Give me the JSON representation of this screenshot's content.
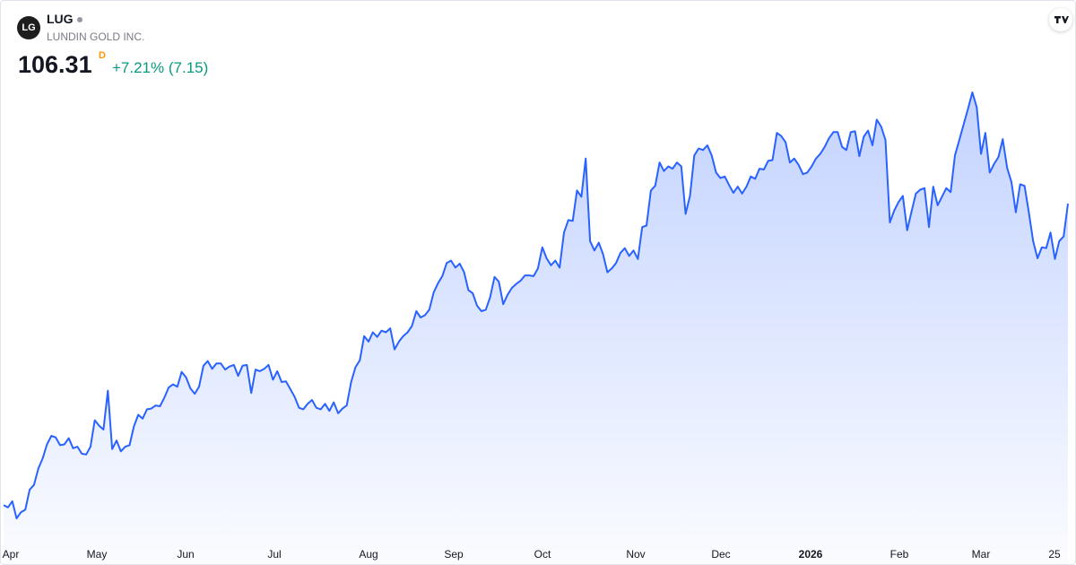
{
  "header": {
    "logo": "LG",
    "symbol": "LUG",
    "name": "LUNDIN GOLD INC.",
    "price": 106.31,
    "interval": "D",
    "change": "+7.21% (7.15)"
  },
  "chart_data": {
    "type": "area",
    "color": "#2962ff",
    "x_labels": [
      "Apr",
      "May",
      "Jun",
      "Jul",
      "Aug",
      "Sep",
      "Oct",
      "Nov",
      "Dec",
      "2026",
      "Feb",
      "Mar",
      "25"
    ],
    "values": [
      67.6,
      67.3,
      68.1,
      65.9,
      66.7,
      67.0,
      69.6,
      70.2,
      72.3,
      73.6,
      75.4,
      76.5,
      76.3,
      75.3,
      75.4,
      76.2,
      74.9,
      75.1,
      74.2,
      74.1,
      75.1,
      78.5,
      77.8,
      77.3,
      82.3,
      74.8,
      75.9,
      74.5,
      75.1,
      75.3,
      77.7,
      79.2,
      78.7,
      79.9,
      80.0,
      80.4,
      80.3,
      81.4,
      82.7,
      83.1,
      82.8,
      84.7,
      84.0,
      82.6,
      81.9,
      82.8,
      85.5,
      86.1,
      85.1,
      85.8,
      85.8,
      85.0,
      85.4,
      85.6,
      84.2,
      85.5,
      85.6,
      82.0,
      85.0,
      84.8,
      85.1,
      85.6,
      83.7,
      84.8,
      83.4,
      83.5,
      82.5,
      81.5,
      80.1,
      79.9,
      80.6,
      81.1,
      80.1,
      79.9,
      80.6,
      79.7,
      80.8,
      79.4,
      80.0,
      80.4,
      83.4,
      85.3,
      86.2,
      89.3,
      88.6,
      89.8,
      89.2,
      90.0,
      89.8,
      90.3,
      87.6,
      88.6,
      89.3,
      89.8,
      90.6,
      92.5,
      91.7,
      92.0,
      92.7,
      94.9,
      96.1,
      97.0,
      98.7,
      99.0,
      98.1,
      98.6,
      97.5,
      95.2,
      94.8,
      93.2,
      92.5,
      92.7,
      94.3,
      96.9,
      96.3,
      93.4,
      94.6,
      95.5,
      96.0,
      96.4,
      97.1,
      97.1,
      97.0,
      98.0,
      100.7,
      99.3,
      98.4,
      99.0,
      98.1,
      102.6,
      104.2,
      104.1,
      108.0,
      107.2,
      112.1,
      101.5,
      100.3,
      101.3,
      99.8,
      97.5,
      98.0,
      98.7,
      100.0,
      100.6,
      99.6,
      100.3,
      99.2,
      103.3,
      103.5,
      108.0,
      108.6,
      111.6,
      110.5,
      111.1,
      110.8,
      111.6,
      111.1,
      105.0,
      107.3,
      112.5,
      113.4,
      113.2,
      113.8,
      112.5,
      110.3,
      109.6,
      109.8,
      108.7,
      107.7,
      108.5,
      107.6,
      108.5,
      109.8,
      109.5,
      110.8,
      110.7,
      111.8,
      111.9,
      115.4,
      115.0,
      114.2,
      111.6,
      112.1,
      111.3,
      110.1,
      110.3,
      111.1,
      112.1,
      112.7,
      113.6,
      114.7,
      115.5,
      115.5,
      113.6,
      113.2,
      115.5,
      115.6,
      112.4,
      114.9,
      115.7,
      113.8,
      117.1,
      116.2,
      114.5,
      103.9,
      105.4,
      106.5,
      107.3,
      102.9,
      105.3,
      107.6,
      108.1,
      108.3,
      103.3,
      108.5,
      106.1,
      107.2,
      108.3,
      107.8,
      112.5,
      114.5,
      116.5,
      118.5,
      120.6,
      118.7,
      112.7,
      115.4,
      110.3,
      111.4,
      112.3,
      114.6,
      110.9,
      109.1,
      105.2,
      108.8,
      108.6,
      105.2,
      101.5,
      99.3,
      100.7,
      100.6,
      102.6,
      99.2,
      101.5,
      102.1,
      106.31
    ]
  }
}
